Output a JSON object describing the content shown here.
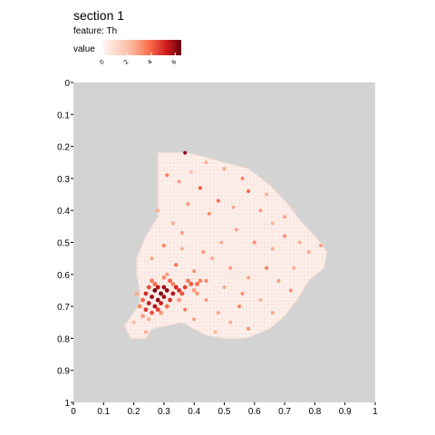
{
  "chart_data": {
    "type": "scatter",
    "title": "section 1",
    "subtitle": "feature: Th",
    "legend": {
      "title": "value",
      "ticks": [
        0,
        2,
        4,
        6
      ],
      "range": [
        0,
        6.5
      ],
      "colors": [
        "#fff5f0",
        "#fcbba1",
        "#fb6a4a",
        "#cb181d",
        "#67000d"
      ]
    },
    "x_ticks": [
      "0",
      "0.1",
      "0.2",
      "0.3",
      "0.4",
      "0.5",
      "0.6",
      "0.7",
      "0.8",
      "0.9",
      "1"
    ],
    "y_ticks": [
      "0",
      "0.1",
      "0.2",
      "0.3",
      "0.4",
      "0.5",
      "0.6",
      "0.7",
      "0.8",
      "0.9",
      "1"
    ],
    "xlim": [
      0,
      1
    ],
    "ylim": [
      0,
      1
    ],
    "y_inverted": true,
    "panel_background": "#d3d3d3",
    "tissue_outline": [
      [
        0.28,
        0.22
      ],
      [
        0.38,
        0.22
      ],
      [
        0.5,
        0.25
      ],
      [
        0.58,
        0.27
      ],
      [
        0.65,
        0.32
      ],
      [
        0.71,
        0.38
      ],
      [
        0.76,
        0.44
      ],
      [
        0.81,
        0.49
      ],
      [
        0.84,
        0.53
      ],
      [
        0.83,
        0.58
      ],
      [
        0.78,
        0.62
      ],
      [
        0.74,
        0.68
      ],
      [
        0.7,
        0.73
      ],
      [
        0.65,
        0.77
      ],
      [
        0.57,
        0.8
      ],
      [
        0.5,
        0.8
      ],
      [
        0.44,
        0.79
      ],
      [
        0.36,
        0.75
      ],
      [
        0.31,
        0.76
      ],
      [
        0.26,
        0.77
      ],
      [
        0.24,
        0.8
      ],
      [
        0.19,
        0.8
      ],
      [
        0.17,
        0.76
      ],
      [
        0.2,
        0.72
      ],
      [
        0.22,
        0.69
      ],
      [
        0.22,
        0.65
      ],
      [
        0.21,
        0.6
      ],
      [
        0.21,
        0.55
      ],
      [
        0.24,
        0.48
      ],
      [
        0.28,
        0.42
      ],
      [
        0.28,
        0.34
      ],
      [
        0.28,
        0.26
      ]
    ],
    "hotspot_points": [
      [
        0.27,
        0.65,
        6.5
      ],
      [
        0.29,
        0.66,
        6.3
      ],
      [
        0.31,
        0.65,
        6.0
      ],
      [
        0.26,
        0.67,
        5.9
      ],
      [
        0.28,
        0.68,
        6.2
      ],
      [
        0.3,
        0.67,
        5.8
      ],
      [
        0.33,
        0.66,
        5.6
      ],
      [
        0.25,
        0.69,
        5.4
      ],
      [
        0.27,
        0.7,
        5.7
      ],
      [
        0.29,
        0.69,
        5.2
      ],
      [
        0.32,
        0.68,
        4.9
      ],
      [
        0.35,
        0.65,
        5.0
      ],
      [
        0.37,
        0.64,
        4.6
      ],
      [
        0.39,
        0.63,
        4.2
      ],
      [
        0.41,
        0.63,
        3.9
      ],
      [
        0.24,
        0.71,
        4.8
      ],
      [
        0.26,
        0.72,
        4.4
      ],
      [
        0.28,
        0.71,
        4.6
      ],
      [
        0.23,
        0.68,
        4.0
      ],
      [
        0.25,
        0.64,
        4.5
      ],
      [
        0.28,
        0.64,
        5.5
      ],
      [
        0.3,
        0.64,
        5.8
      ],
      [
        0.34,
        0.64,
        5.1
      ],
      [
        0.36,
        0.66,
        4.3
      ],
      [
        0.31,
        0.7,
        3.8
      ],
      [
        0.22,
        0.7,
        3.3
      ],
      [
        0.24,
        0.66,
        5.0
      ],
      [
        0.38,
        0.62,
        3.6
      ],
      [
        0.42,
        0.62,
        3.4
      ],
      [
        0.27,
        0.63,
        3.9
      ],
      [
        0.33,
        0.63,
        3.5
      ],
      [
        0.29,
        0.72,
        3.1
      ],
      [
        0.23,
        0.73,
        2.8
      ],
      [
        0.35,
        0.68,
        3.0
      ],
      [
        0.4,
        0.65,
        2.9
      ],
      [
        0.32,
        0.62,
        4.1
      ],
      [
        0.26,
        0.62,
        3.6
      ],
      [
        0.3,
        0.61,
        3.2
      ],
      [
        0.21,
        0.66,
        2.6
      ],
      [
        0.25,
        0.74,
        2.5
      ]
    ],
    "scattered_points": [
      [
        0.42,
        0.33,
        4.2
      ],
      [
        0.35,
        0.31,
        2.8
      ],
      [
        0.31,
        0.29,
        3.5
      ],
      [
        0.39,
        0.28,
        2.1
      ],
      [
        0.48,
        0.37,
        3.8
      ],
      [
        0.53,
        0.39,
        2.7
      ],
      [
        0.45,
        0.41,
        3.2
      ],
      [
        0.58,
        0.34,
        4.0
      ],
      [
        0.62,
        0.4,
        3.0
      ],
      [
        0.66,
        0.44,
        2.4
      ],
      [
        0.7,
        0.48,
        3.3
      ],
      [
        0.75,
        0.5,
        2.6
      ],
      [
        0.36,
        0.47,
        2.9
      ],
      [
        0.3,
        0.51,
        3.4
      ],
      [
        0.26,
        0.55,
        2.8
      ],
      [
        0.34,
        0.57,
        3.9
      ],
      [
        0.4,
        0.59,
        3.1
      ],
      [
        0.46,
        0.55,
        2.6
      ],
      [
        0.52,
        0.58,
        3.0
      ],
      [
        0.58,
        0.61,
        2.7
      ],
      [
        0.64,
        0.58,
        3.6
      ],
      [
        0.68,
        0.62,
        2.9
      ],
      [
        0.72,
        0.65,
        3.2
      ],
      [
        0.62,
        0.68,
        2.5
      ],
      [
        0.55,
        0.7,
        3.4
      ],
      [
        0.48,
        0.72,
        2.8
      ],
      [
        0.44,
        0.68,
        3.0
      ],
      [
        0.52,
        0.75,
        2.6
      ],
      [
        0.58,
        0.77,
        3.1
      ],
      [
        0.47,
        0.78,
        2.4
      ],
      [
        0.4,
        0.74,
        2.9
      ],
      [
        0.37,
        0.71,
        3.6
      ],
      [
        0.44,
        0.62,
        3.4
      ],
      [
        0.5,
        0.64,
        2.7
      ],
      [
        0.56,
        0.66,
        3.2
      ],
      [
        0.66,
        0.52,
        2.5
      ],
      [
        0.6,
        0.5,
        3.3
      ],
      [
        0.54,
        0.46,
        2.8
      ],
      [
        0.49,
        0.5,
        2.6
      ],
      [
        0.43,
        0.53,
        3.1
      ],
      [
        0.78,
        0.53,
        2.7
      ],
      [
        0.82,
        0.51,
        2.9
      ],
      [
        0.28,
        0.4,
        2.6
      ],
      [
        0.38,
        0.38,
        3.0
      ],
      [
        0.33,
        0.44,
        2.7
      ],
      [
        0.44,
        0.25,
        2.5
      ],
      [
        0.37,
        0.22,
        6.0
      ],
      [
        0.5,
        0.27,
        2.6
      ],
      [
        0.56,
        0.3,
        3.4
      ],
      [
        0.64,
        0.35,
        2.5
      ],
      [
        0.7,
        0.42,
        2.8
      ],
      [
        0.73,
        0.58,
        2.6
      ],
      [
        0.66,
        0.72,
        2.7
      ],
      [
        0.36,
        0.52,
        2.5
      ],
      [
        0.31,
        0.6,
        2.9
      ],
      [
        0.41,
        0.66,
        3.2
      ],
      [
        0.2,
        0.75,
        2.4
      ],
      [
        0.24,
        0.78,
        2.6
      ]
    ]
  }
}
